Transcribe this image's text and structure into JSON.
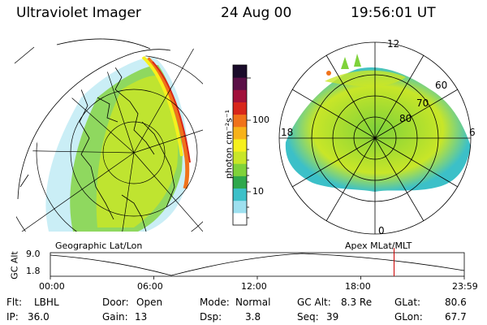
{
  "header": {
    "title": "Ultraviolet Imager",
    "date": "24 Aug 00",
    "time": "19:56:01 UT"
  },
  "colorbar": {
    "unit_label": "photon cm⁻²s⁻¹",
    "ticks": [
      "100",
      "10"
    ],
    "scale": "log",
    "colors": [
      "#ffffff",
      "#9ee0ef",
      "#3cc0c8",
      "#2ea84c",
      "#7fd23a",
      "#c8e628",
      "#f6f01c",
      "#f7b21a",
      "#f0721a",
      "#d8261a",
      "#a1103a",
      "#5a0f46",
      "#1a0b2a"
    ]
  },
  "map_labels": {
    "geo": "Geographic Lat/Lon",
    "apex": "Apex MLat/MLT"
  },
  "polar_labels": {
    "top": "12",
    "bottom": "0",
    "left": "18",
    "right": "6",
    "ring_60": "60",
    "ring_70": "70",
    "ring_80": "80"
  },
  "altitude_plot": {
    "axis_label": "GC Alt",
    "y_top": "9.0",
    "y_bottom": "1.8",
    "x_ticks": [
      "00:00",
      "06:00",
      "12:00",
      "18:00",
      "23:59"
    ],
    "current_marker_hours": 19.93,
    "marker_color": "#cc0000"
  },
  "status": {
    "filter_key": "Flt:",
    "filter_value": "LBHL",
    "ip_key": "IP:",
    "ip_value": "36.0",
    "door_key": "Door:",
    "door_value": "Open",
    "gain_key": "Gain:",
    "gain_value": "13",
    "mode_key": "Mode:",
    "mode_value": "Normal",
    "dsp_key": "Dsp:",
    "dsp_value": "3.8",
    "gcalt_key": "GC Alt:",
    "gcalt_value": "8.3 Re",
    "seq_key": "Seq:",
    "seq_value": "39",
    "glat_key": "GLat:",
    "glat_value": "80.6",
    "glon_key": "GLon:",
    "glon_value": "67.7"
  }
}
